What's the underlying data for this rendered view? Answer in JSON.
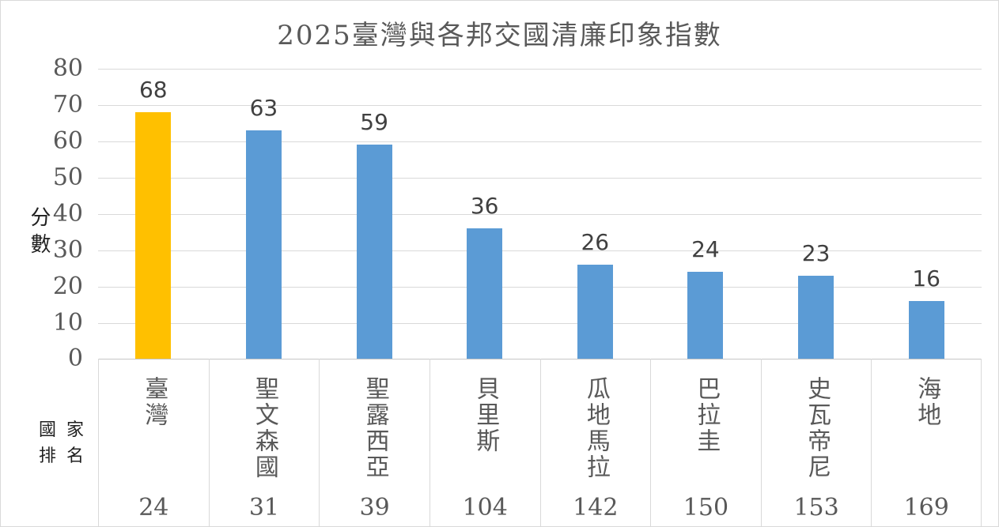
{
  "chart_data": {
    "type": "bar",
    "title": "2025臺灣與各邦交國清廉印象指數",
    "ylabel": "分數",
    "xlabel": "國家排名",
    "categories": [
      "臺灣",
      "聖文森國",
      "聖露西亞",
      "貝里斯",
      "瓜地馬拉",
      "巴拉圭",
      "史瓦帝尼",
      "海地"
    ],
    "values": [
      68,
      63,
      59,
      36,
      26,
      24,
      23,
      16
    ],
    "ranks": [
      "24",
      "31",
      "39",
      "104",
      "142",
      "150",
      "153",
      "169"
    ],
    "ylim": [
      0,
      80
    ],
    "yticks": [
      0,
      10,
      20,
      30,
      40,
      50,
      60,
      70,
      80
    ],
    "grid": true,
    "legend": "none",
    "bar_color": "#5B9BD5",
    "highlight_index": 0,
    "highlight_color": "#FFC000",
    "value_label_color": "#404040",
    "axis_text_color": "#595959",
    "gridline_color": "#d9d9d9"
  }
}
